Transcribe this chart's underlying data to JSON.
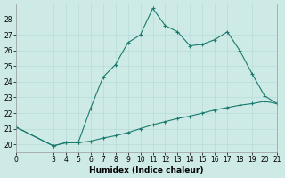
{
  "title": "",
  "xlabel": "Humidex (Indice chaleur)",
  "background_color": "#ceeae6",
  "line_color": "#1a7a6e",
  "grid_color": "#b8ddd8",
  "x_upper": [
    0,
    3,
    4,
    5,
    6,
    7,
    8,
    9,
    10,
    11,
    12,
    13,
    14,
    15,
    16,
    17,
    18,
    19,
    20,
    21
  ],
  "y_upper": [
    21.1,
    19.9,
    20.1,
    20.1,
    22.3,
    24.3,
    25.1,
    26.5,
    27.0,
    28.7,
    27.6,
    27.2,
    26.3,
    26.4,
    26.7,
    27.2,
    26.0,
    24.5,
    23.1,
    22.6
  ],
  "x_lower": [
    0,
    3,
    4,
    5,
    6,
    7,
    8,
    9,
    10,
    11,
    12,
    13,
    14,
    15,
    16,
    17,
    18,
    19,
    20,
    21
  ],
  "y_lower": [
    21.1,
    19.9,
    20.1,
    20.1,
    20.2,
    20.4,
    20.55,
    20.75,
    21.0,
    21.25,
    21.45,
    21.65,
    21.8,
    22.0,
    22.2,
    22.35,
    22.5,
    22.6,
    22.75,
    22.6
  ],
  "xlim": [
    0,
    21
  ],
  "ylim": [
    19.5,
    29.0
  ],
  "yticks": [
    20,
    21,
    22,
    23,
    24,
    25,
    26,
    27,
    28
  ],
  "xticks": [
    0,
    3,
    4,
    5,
    6,
    7,
    8,
    9,
    10,
    11,
    12,
    13,
    14,
    15,
    16,
    17,
    18,
    19,
    20,
    21
  ]
}
